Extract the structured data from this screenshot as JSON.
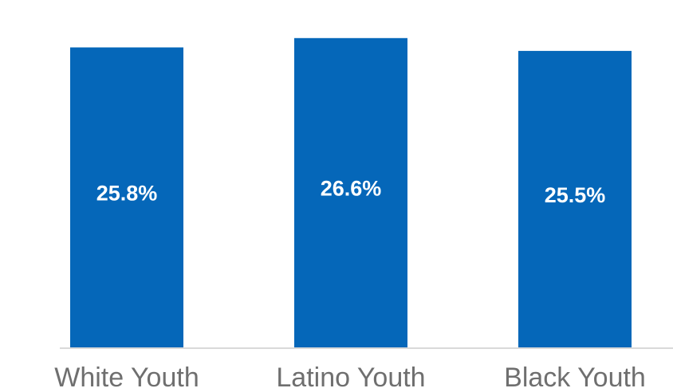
{
  "chart_data": {
    "type": "bar",
    "categories": [
      "White Youth",
      "Latino Youth",
      "Black Youth"
    ],
    "values": [
      25.8,
      26.6,
      25.5
    ],
    "data_labels": [
      "25.8%",
      "26.6%",
      "25.5%"
    ],
    "ylim": [
      0,
      28.5
    ],
    "grid": false,
    "legend": "none",
    "colors": {
      "bar": "#0567b9",
      "axis": "#d9d9d9",
      "tick_text": "#6f6f6f",
      "label_text": "#ffffff"
    }
  }
}
